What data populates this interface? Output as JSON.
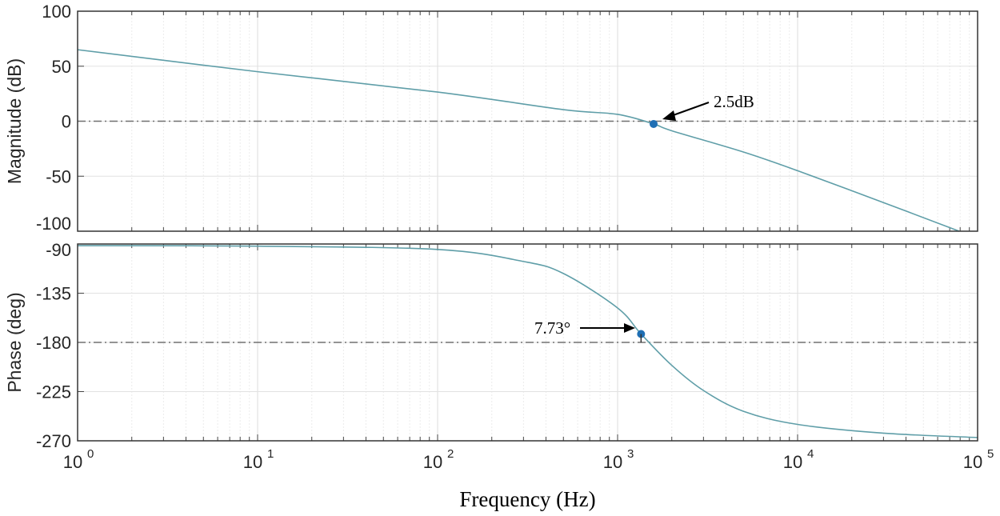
{
  "chart_data": [
    {
      "type": "line",
      "panel": "magnitude",
      "ylabel": "Magnitude (dB)",
      "xscale": "log",
      "xlim": [
        1,
        100000
      ],
      "ylim": [
        -100,
        100
      ],
      "yticks": [
        "100",
        "50",
        "0",
        "-50",
        "-100"
      ],
      "ytick_values": [
        100,
        50,
        0,
        -50,
        -100
      ],
      "grid": true,
      "reference_line": 0,
      "series": [
        {
          "x": [
            1,
            10,
            100,
            500,
            1000,
            1585,
            2000,
            5000,
            10000,
            30000,
            79000
          ],
          "y": [
            65,
            45,
            26.5,
            10.5,
            6.2,
            -2.5,
            -8.7,
            -28,
            -45,
            -74,
            -100
          ]
        }
      ],
      "color": "#5f9ea8",
      "marker": {
        "x": 1585,
        "y": -2.5,
        "color": "#1f6fb4"
      },
      "annotation": "2.5dB"
    },
    {
      "type": "line",
      "panel": "phase",
      "ylabel": "Phase (deg)",
      "xlabel": "Frequency (Hz)",
      "xscale": "log",
      "xlim": [
        1,
        100000
      ],
      "ylim": [
        -270,
        -90
      ],
      "yticks": [
        "-90",
        "-135",
        "-180",
        "-225",
        "-270"
      ],
      "ytick_values": [
        -90,
        -135,
        -180,
        -225,
        -270
      ],
      "xticks": [
        {
          "base": "10",
          "exp": "0"
        },
        {
          "base": "10",
          "exp": "1"
        },
        {
          "base": "10",
          "exp": "2"
        },
        {
          "base": "10",
          "exp": "3"
        },
        {
          "base": "10",
          "exp": "4"
        },
        {
          "base": "10",
          "exp": "5"
        }
      ],
      "grid": true,
      "reference_line": -180,
      "series": [
        {
          "x": [
            1,
            10,
            100,
            300,
            500,
            1000,
            1350,
            2000,
            3000,
            5000,
            10000,
            30000,
            100000
          ],
          "y": [
            -91.5,
            -92,
            -95,
            -106,
            -117,
            -148.5,
            -172.3,
            -201,
            -224,
            -243,
            -255,
            -263,
            -267
          ]
        }
      ],
      "color": "#5f9ea8",
      "marker": {
        "x": 1350,
        "y": -172.3,
        "color": "#1f6fb4"
      },
      "annotation": "7.73°"
    }
  ]
}
